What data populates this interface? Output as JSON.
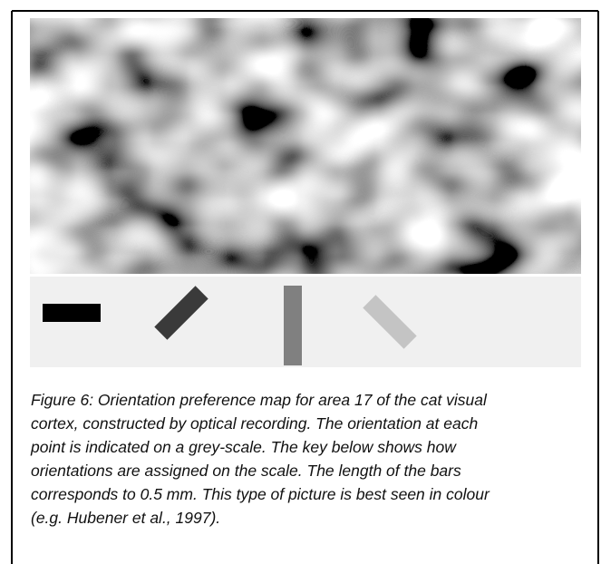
{
  "figure": {
    "caption_lines": [
      "Figure 6: Orientation preference map for area 17 of the cat visual",
      "cortex, constructed by optical recording. The orientation at each",
      "point is indicated on a grey-scale. The key below shows how",
      "orientations are assigned on the scale. The length of the bars",
      "corresponds to 0.5 mm. This type of picture is best seen in colour",
      "(e.g. Hubener et al., 1997)."
    ]
  }
}
